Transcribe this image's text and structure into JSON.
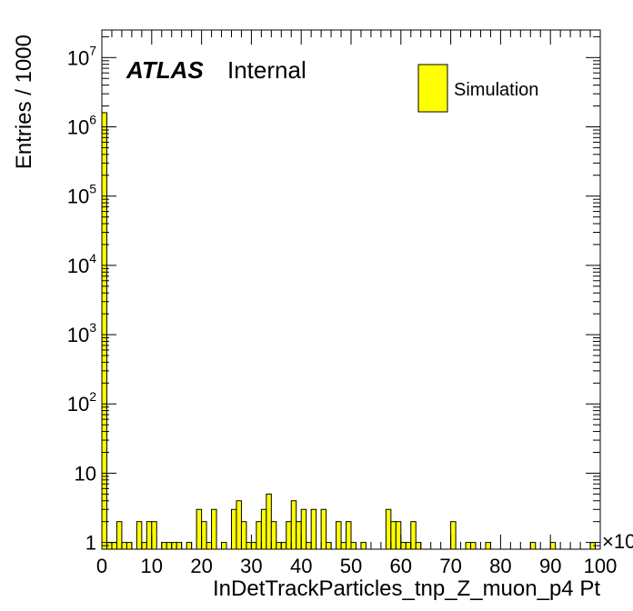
{
  "chart_data": {
    "type": "bar",
    "title": "",
    "xlabel": "InDetTrackParticles_tnp_Z_muon_p4 Pt",
    "ylabel": "Entries / 1000",
    "x_multiplier_label": "×10",
    "xlim": [
      0,
      100
    ],
    "ylim": [
      0.8,
      25000000
    ],
    "y_scale": "log",
    "x_ticks": [
      "0",
      "10",
      "20",
      "30",
      "40",
      "50",
      "60",
      "70",
      "80",
      "90",
      "100"
    ],
    "y_ticks": [
      {
        "base": "1",
        "exp": ""
      },
      {
        "base": "10",
        "exp": ""
      },
      {
        "base": "10",
        "exp": "2"
      },
      {
        "base": "10",
        "exp": "3"
      },
      {
        "base": "10",
        "exp": "4"
      },
      {
        "base": "10",
        "exp": "5"
      },
      {
        "base": "10",
        "exp": "6"
      },
      {
        "base": "10",
        "exp": "7"
      }
    ],
    "y_tick_values": [
      1,
      10,
      100,
      1000,
      10000,
      100000,
      1000000,
      10000000
    ],
    "series": [
      {
        "name": "Simulation",
        "color": "#ffff00",
        "edge_color": "#000000",
        "bin_width": 1,
        "x": [
          0,
          1,
          2,
          3,
          4,
          5,
          6,
          7,
          8,
          9,
          10,
          11,
          12,
          13,
          14,
          15,
          16,
          17,
          18,
          19,
          20,
          21,
          22,
          23,
          24,
          25,
          26,
          27,
          28,
          29,
          30,
          31,
          32,
          33,
          34,
          35,
          36,
          37,
          38,
          39,
          40,
          41,
          42,
          43,
          44,
          45,
          46,
          47,
          48,
          49,
          50,
          51,
          52,
          53,
          54,
          55,
          56,
          57,
          58,
          59,
          60,
          61,
          62,
          63,
          64,
          65,
          66,
          67,
          68,
          69,
          70,
          71,
          72,
          73,
          74,
          75,
          76,
          77,
          78,
          79,
          80,
          81,
          82,
          83,
          84,
          85,
          86,
          87,
          88,
          89,
          90,
          91,
          92,
          93,
          94,
          95,
          96,
          97,
          98,
          99
        ],
        "values": [
          1600000,
          1,
          1,
          2,
          1,
          1,
          0,
          2,
          1,
          2,
          2,
          0,
          1,
          1,
          1,
          1,
          0,
          1,
          0,
          3,
          2,
          1,
          3,
          0,
          1,
          0,
          3,
          4,
          2,
          1,
          1,
          2,
          3,
          5,
          2,
          1,
          1,
          2,
          4,
          2,
          3,
          1,
          3,
          0,
          3,
          1,
          0,
          2,
          1,
          2,
          1,
          0,
          1,
          0,
          0,
          0,
          0,
          3,
          2,
          2,
          1,
          1,
          2,
          1,
          0,
          0,
          0,
          0,
          0,
          0,
          2,
          0,
          0,
          1,
          1,
          0,
          0,
          1,
          0,
          0,
          0,
          0,
          0,
          0,
          0,
          0,
          1,
          0,
          0,
          0,
          1,
          0,
          0,
          0,
          0,
          0,
          0,
          0,
          1,
          0
        ]
      }
    ]
  },
  "annotations": {
    "experiment": "ATLAS",
    "status": "Internal"
  },
  "legend": {
    "entries": [
      {
        "label": "Simulation",
        "color": "#ffff00"
      }
    ]
  }
}
